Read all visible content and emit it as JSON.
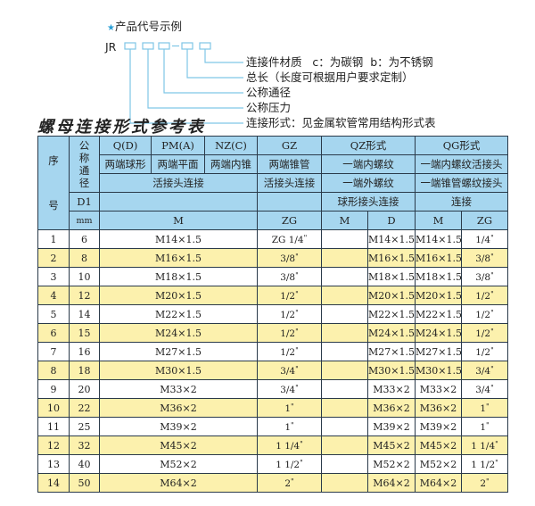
{
  "example": {
    "heading": "产品代号示例",
    "star_color": "#2a9fd6",
    "prefix": "JR",
    "dash": "-",
    "labels": [
      "连接件材质   c：为碳钢  b：为不锈钢",
      "总长（长度可根据用户要求定制）",
      "公称通径",
      "公称压力",
      "连接形式：见金属软管常用结构形式表"
    ]
  },
  "table_title": "螺母连接形式参考表",
  "colors": {
    "header_bg": "#a6d6ef",
    "row_highlight": "#fcf1ad",
    "border": "#2a3a4a"
  },
  "header": {
    "seq": "序号",
    "nominal": "公称通径",
    "qd": "Q(D)",
    "pma": "PM(A)",
    "nzc": "NZ(C)",
    "gz": "GZ",
    "qz": "QZ形式",
    "qg": "QG形式",
    "qd_desc": "两端球形",
    "pma_desc": "两端平面",
    "nzc_desc": "两端内锥",
    "gz_desc": "两端锥管",
    "qz_desc1": "一端内螺纹",
    "qg_desc1": "一端内螺纹活接头",
    "union": "活接头连接",
    "gz_union": "活接头连接",
    "qz_desc2": "一端外螺纹",
    "qg_desc2": "一端锥管螺纹接头",
    "d1": "D1",
    "qz_desc3": "球形接头连接",
    "qg_desc3": "连接",
    "mm": "mm",
    "m": "M",
    "zg": "ZG",
    "qz_m": "M",
    "qz_d": "D",
    "qg_m": "M",
    "qg_zg": "ZG"
  },
  "rows": [
    {
      "no": "1",
      "dn": "6",
      "m": "M14×1.5",
      "zg": "ZG 1/4",
      "qz_m": "",
      "qz_d": "M14×1.5",
      "qg_m": "M14×1.5",
      "qg_zg": "1/4"
    },
    {
      "no": "2",
      "dn": "8",
      "m": "M16×1.5",
      "zg": "3/8",
      "qz_m": "",
      "qz_d": "M16×1.5",
      "qg_m": "M16×1.5",
      "qg_zg": "3/8"
    },
    {
      "no": "3",
      "dn": "10",
      "m": "M18×1.5",
      "zg": "3/8",
      "qz_m": "",
      "qz_d": "M18×1.5",
      "qg_m": "M18×1.5",
      "qg_zg": "3/8"
    },
    {
      "no": "4",
      "dn": "12",
      "m": "M20×1.5",
      "zg": "1/2",
      "qz_m": "",
      "qz_d": "M20×1.5",
      "qg_m": "M20×1.5",
      "qg_zg": "1/2"
    },
    {
      "no": "5",
      "dn": "14",
      "m": "M22×1.5",
      "zg": "1/2",
      "qz_m": "",
      "qz_d": "M22×1.5",
      "qg_m": "M22×1.5",
      "qg_zg": "1/2"
    },
    {
      "no": "6",
      "dn": "15",
      "m": "M24×1.5",
      "zg": "1/2",
      "qz_m": "",
      "qz_d": "M24×1.5",
      "qg_m": "M24×1.5",
      "qg_zg": "1/2"
    },
    {
      "no": "7",
      "dn": "16",
      "m": "M27×1.5",
      "zg": "1/2",
      "qz_m": "",
      "qz_d": "M27×1.5",
      "qg_m": "M27×1.5",
      "qg_zg": "1/2"
    },
    {
      "no": "8",
      "dn": "18",
      "m": "M30×1.5",
      "zg": "3/4",
      "qz_m": "",
      "qz_d": "M30×1.5",
      "qg_m": "M30×1.5",
      "qg_zg": "3/4"
    },
    {
      "no": "9",
      "dn": "20",
      "m": "M33×2",
      "zg": "3/4",
      "qz_m": "",
      "qz_d": "M33×2",
      "qg_m": "M33×2",
      "qg_zg": "3/4"
    },
    {
      "no": "10",
      "dn": "22",
      "m": "M36×2",
      "zg": "1",
      "qz_m": "",
      "qz_d": "M36×2",
      "qg_m": "M36×2",
      "qg_zg": "1"
    },
    {
      "no": "11",
      "dn": "25",
      "m": "M39×2",
      "zg": "1",
      "qz_m": "",
      "qz_d": "M39×2",
      "qg_m": "M39×2",
      "qg_zg": "1"
    },
    {
      "no": "12",
      "dn": "32",
      "m": "M45×2",
      "zg": "1 1/4",
      "qz_m": "",
      "qz_d": "M45×2",
      "qg_m": "M45×2",
      "qg_zg": "1 1/4"
    },
    {
      "no": "13",
      "dn": "40",
      "m": "M52×2",
      "zg": "1 1/2",
      "qz_m": "",
      "qz_d": "M52×2",
      "qg_m": "M52×2",
      "qg_zg": "1 1/2"
    },
    {
      "no": "14",
      "dn": "50",
      "m": "M64×2",
      "zg": "2",
      "qz_m": "",
      "qz_d": "M64×2",
      "qg_m": "M64×2",
      "qg_zg": "2"
    }
  ]
}
